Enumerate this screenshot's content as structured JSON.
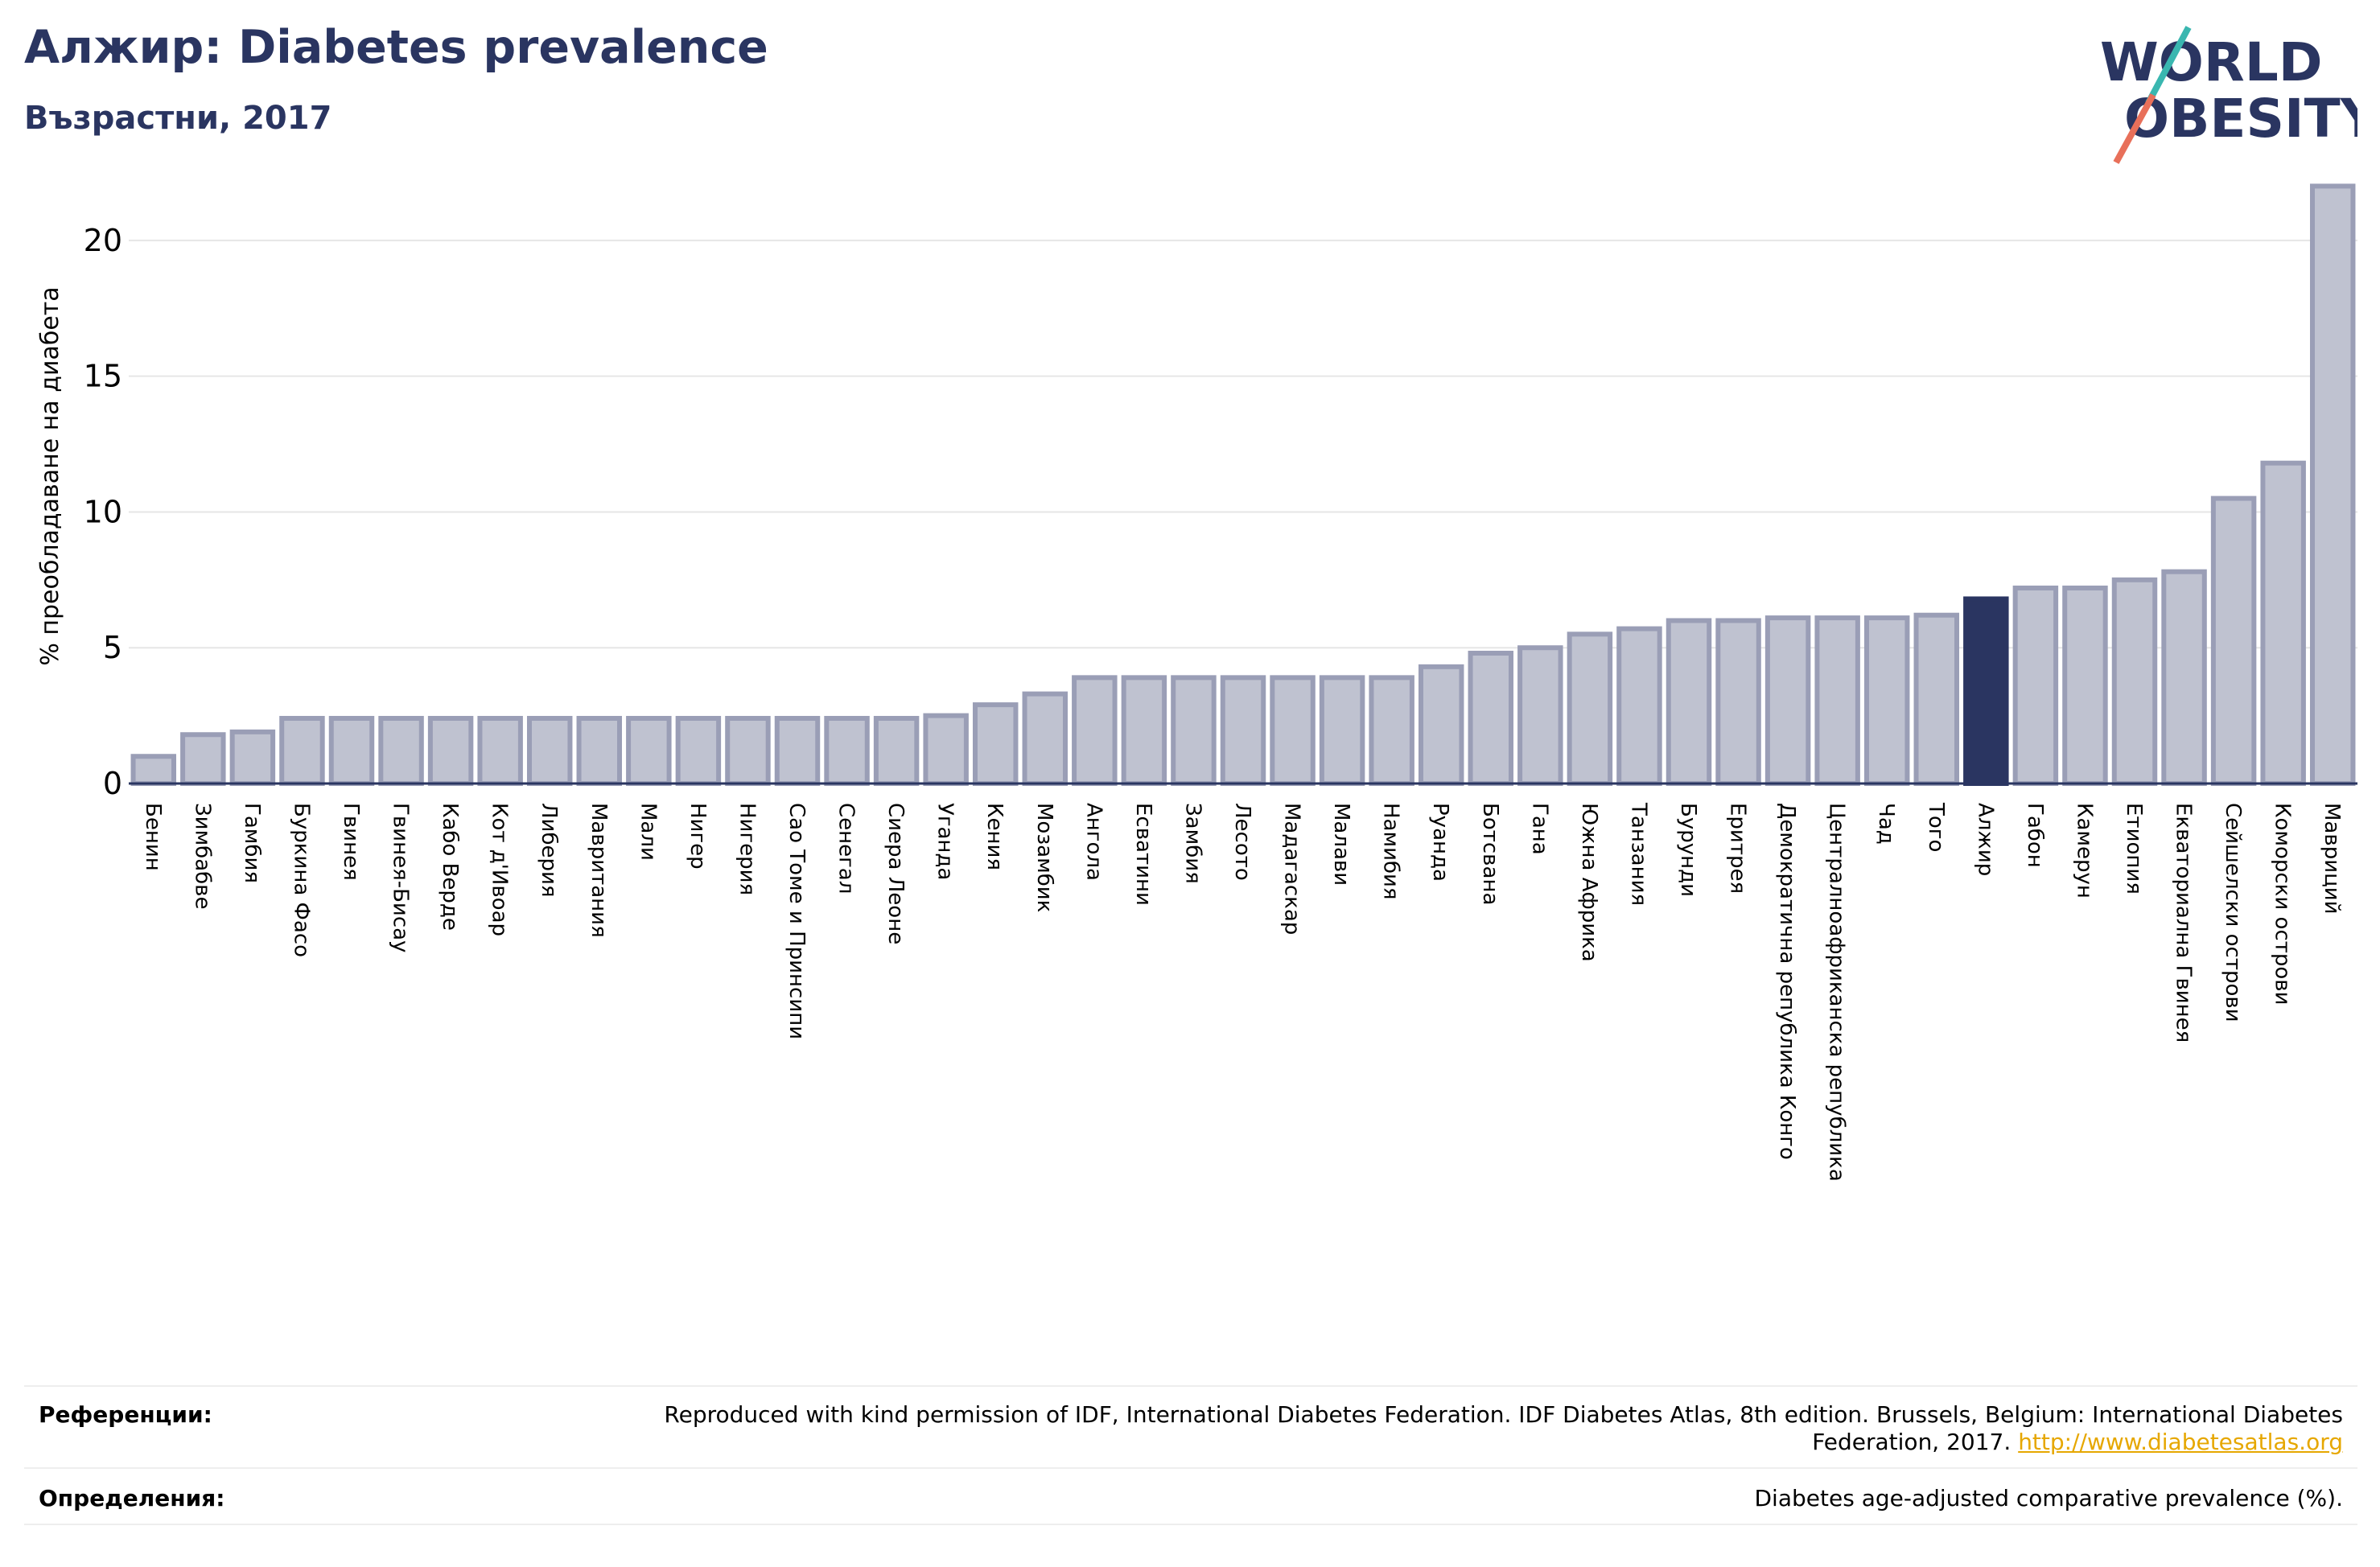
{
  "header": {
    "title": "Алжир: Diabetes prevalence",
    "subtitle": "Възрастни, 2017"
  },
  "logo": {
    "line1": "WORLD",
    "line2": "OBESITY",
    "colors": {
      "text": "#2a3561",
      "slash_teal": "#3ab7b0",
      "slash_red": "#e8705a"
    }
  },
  "chart_data": {
    "type": "bar",
    "ylabel": "% преобладаване на диабета",
    "ylim": [
      0,
      22.5
    ],
    "yticks": [
      0,
      5,
      10,
      15,
      20
    ],
    "grid": true,
    "highlight": "Алжир",
    "colors": {
      "bar": "#bfc2d0",
      "bar_edge": "#9a9eb6",
      "highlight": "#2a3561"
    },
    "categories": [
      "Бенин",
      "Зимбабве",
      "Гамбия",
      "Буркина Фасо",
      "Гвинея",
      "Гвинея-Бисау",
      "Кабо Верде",
      "Кот д'Ивоар",
      "Либерия",
      "Мавритания",
      "Мали",
      "Нигер",
      "Нигерия",
      "Сао Томе и Принсипи",
      "Сенегал",
      "Сиера Леоне",
      "Уганда",
      "Кения",
      "Мозамбик",
      "Ангола",
      "Есватини",
      "Замбия",
      "Лесото",
      "Мадагаскар",
      "Малави",
      "Намибия",
      "Руанда",
      "Ботсвана",
      "Гана",
      "Южна Африка",
      "Танзания",
      "Бурунди",
      "Еритрея",
      "Демократична република Конго",
      "Централноафриканска република",
      "Чад",
      "Того",
      "Алжир",
      "Габон",
      "Камерун",
      "Етиопия",
      "Екваториална Гвинея",
      "Сейшелски острови",
      "Коморски острови",
      "Мавриций"
    ],
    "values": [
      1.0,
      1.8,
      1.9,
      2.4,
      2.4,
      2.4,
      2.4,
      2.4,
      2.4,
      2.4,
      2.4,
      2.4,
      2.4,
      2.4,
      2.4,
      2.4,
      2.5,
      2.9,
      3.3,
      3.9,
      3.9,
      3.9,
      3.9,
      3.9,
      3.9,
      3.9,
      4.3,
      4.8,
      5.0,
      5.5,
      5.7,
      6.0,
      6.0,
      6.1,
      6.1,
      6.1,
      6.2,
      6.8,
      7.2,
      7.2,
      7.5,
      7.8,
      10.5,
      11.8,
      22.0
    ]
  },
  "footer": {
    "references_label": "Референции:",
    "references_text": "Reproduced with kind permission of IDF, International Diabetes Federation. IDF Diabetes Atlas, 8th edition. Brussels, Belgium: International Diabetes Federation, 2017.",
    "references_link": "http://www.diabetesatlas.org",
    "definitions_label": "Определения:",
    "definitions_text": "Diabetes age-adjusted comparative prevalence (%)."
  }
}
